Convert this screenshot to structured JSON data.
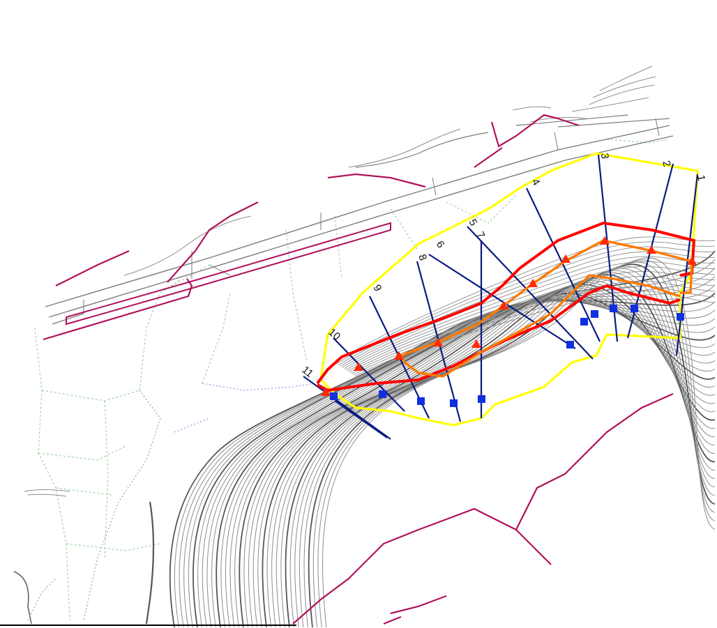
{
  "map": {
    "section_labels": [
      "1",
      "2",
      "3",
      "4",
      "5",
      "6",
      "7",
      "8",
      "9",
      "10",
      "11"
    ],
    "colors": {
      "background": "#ffffff",
      "contour": "#8c8c8c",
      "contour_index": "#555555",
      "road": "#7a7a7a",
      "drainage": "#b0105a",
      "parcel": "#9fd39f",
      "stream": "#8a9fd8",
      "study_boundary": "#ffff00",
      "line_outer": "#ff0000",
      "line_middle": "#ff7a00",
      "cross_section": "#0a1a80",
      "marker_square": "#1030e0",
      "marker_triangle": "#ff2a00"
    },
    "legend_icons": {
      "triangle": "triangle-marker-icon",
      "square": "square-marker-icon"
    }
  }
}
